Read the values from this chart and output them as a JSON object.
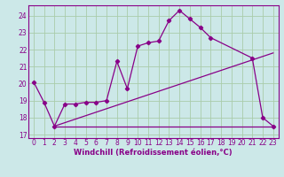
{
  "xlabel": "Windchill (Refroidissement éolien,°C)",
  "background_color": "#cce8e8",
  "grid_color": "#aaccaa",
  "line_color": "#880088",
  "xlim": [
    -0.5,
    23.5
  ],
  "ylim": [
    16.8,
    24.6
  ],
  "yticks": [
    17,
    18,
    19,
    20,
    21,
    22,
    23,
    24
  ],
  "xticks": [
    0,
    1,
    2,
    3,
    4,
    5,
    6,
    7,
    8,
    9,
    10,
    11,
    12,
    13,
    14,
    15,
    16,
    17,
    18,
    19,
    20,
    21,
    22,
    23
  ],
  "series1_x": [
    0,
    1,
    2,
    3,
    4,
    5,
    6,
    7,
    8,
    9,
    10,
    11,
    12,
    13,
    14,
    15,
    16,
    17,
    21,
    22,
    23
  ],
  "series1_y": [
    20.1,
    18.9,
    17.5,
    18.8,
    18.8,
    18.9,
    18.9,
    19.0,
    21.3,
    19.7,
    22.2,
    22.4,
    22.5,
    23.7,
    24.3,
    23.8,
    23.3,
    22.7,
    21.5,
    18.0,
    17.5
  ],
  "series2_x": [
    2,
    3,
    4,
    5,
    6,
    7,
    8,
    9,
    10,
    11,
    12,
    13,
    14,
    15,
    16,
    17,
    18,
    19,
    20,
    21,
    22,
    23
  ],
  "series2_y": [
    17.5,
    17.5,
    17.5,
    17.5,
    17.5,
    17.5,
    17.5,
    17.5,
    17.5,
    17.5,
    17.5,
    17.5,
    17.5,
    17.5,
    17.5,
    17.5,
    17.5,
    17.5,
    17.5,
    17.5,
    17.5,
    17.5
  ],
  "series3_x": [
    2,
    23
  ],
  "series3_y": [
    17.5,
    21.8
  ],
  "tick_fontsize": 5.5,
  "label_fontsize": 6
}
